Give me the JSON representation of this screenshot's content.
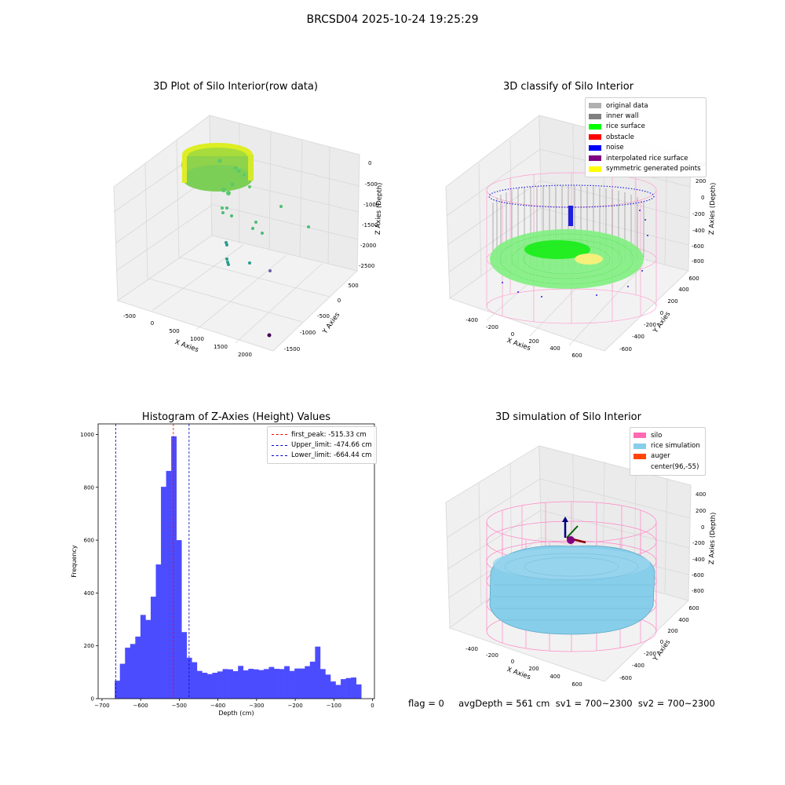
{
  "suptitle": "BRCSD04 2025-10-24 19:25:29",
  "footer": "flag = 0     avgDepth = 561 cm  sv1 = 700~2300  sv2 = 700~2300",
  "colors": {
    "hist": "#4c4cff",
    "peak": "#ff0000",
    "limit": "#0000cc",
    "silo": "#ff69b4",
    "rice": "#87ceeb",
    "auger": "#ff4500"
  },
  "raw_plot": {
    "title": "3D Plot of Silo Interior(row data)",
    "xlabel": "X Axies",
    "ylabel": "Y Axies",
    "zlabel": "Z Axies (Depth)",
    "x_ticks": [
      "-500",
      "0",
      "500",
      "1000",
      "1500",
      "2000"
    ],
    "y_ticks": [
      "500",
      "0",
      "-500",
      "-1000",
      "-1500"
    ],
    "z_ticks": [
      "0",
      "-500",
      "-1000",
      "-1500",
      "-2000",
      "-2500"
    ]
  },
  "classify_plot": {
    "title": "3D classify of Silo Interior",
    "xlabel": "X Axies",
    "ylabel": "Y Axies",
    "zlabel": "Z Axies (Depth)",
    "x_ticks": [
      "-400",
      "-200",
      "0",
      "200",
      "400",
      "600"
    ],
    "y_ticks": [
      "600",
      "400",
      "200",
      "0",
      "-200",
      "-400",
      "-600"
    ],
    "z_ticks": [
      "400",
      "200",
      "0",
      "-200",
      "-400",
      "-600",
      "-800"
    ],
    "legend": [
      {
        "label": "original data",
        "color": "#b0b0b0"
      },
      {
        "label": "inner wall",
        "color": "#808080"
      },
      {
        "label": "rice surface",
        "color": "#00ff00"
      },
      {
        "label": "obstacle",
        "color": "#ff0000"
      },
      {
        "label": "noise",
        "color": "#0000ff"
      },
      {
        "label": "interpolated rice surface",
        "color": "#800080"
      },
      {
        "label": "symmetric generated points",
        "color": "#ffff00"
      }
    ]
  },
  "histogram": {
    "title": "Histogram of Z-Axies (Height) Values",
    "xlabel": "Depth (cm)",
    "ylabel": "Frequency",
    "legend": [
      {
        "label": "first_peak: -515.33 cm"
      },
      {
        "label": "Upper_limit: -474.66 cm"
      },
      {
        "label": "Lower_limit: -664.44 cm"
      }
    ]
  },
  "sim_plot": {
    "title": "3D simulation of Silo Interior",
    "xlabel": "X Axies",
    "ylabel": "Y Axies",
    "zlabel": "Z Axies (Depth)",
    "x_ticks": [
      "-400",
      "-200",
      "0",
      "200",
      "400",
      "600"
    ],
    "y_ticks": [
      "600",
      "400",
      "200",
      "0",
      "-200",
      "-400",
      "-600"
    ],
    "z_ticks": [
      "400",
      "200",
      "0",
      "-200",
      "-400",
      "-600",
      "-800"
    ],
    "legend": [
      {
        "label": "silo",
        "color": "#ff69b4"
      },
      {
        "label": "rice simulation",
        "color": "#87ceeb"
      },
      {
        "label": "auger",
        "color": "#ff4500"
      },
      {
        "label": "center(96,-55)",
        "color": ""
      }
    ]
  },
  "chart_data": {
    "type": "bar",
    "title": "Histogram of Z-Axies (Height) Values",
    "xlabel": "Depth (cm)",
    "ylabel": "Frequency",
    "xlim": [
      -710,
      5
    ],
    "ylim": [
      0,
      1040
    ],
    "x_ticks": [
      -700,
      -600,
      -500,
      -400,
      -300,
      -200,
      -100,
      0
    ],
    "y_ticks": [
      0,
      200,
      400,
      600,
      800,
      1000
    ],
    "bin_width": 13.29,
    "bin_edges_start": -667,
    "values": [
      68,
      132,
      193,
      207,
      235,
      317,
      298,
      386,
      508,
      802,
      862,
      993,
      600,
      252,
      155,
      138,
      105,
      98,
      93,
      98,
      103,
      112,
      111,
      104,
      124,
      107,
      113,
      111,
      108,
      112,
      120,
      113,
      112,
      123,
      105,
      114,
      114,
      123,
      140,
      197,
      112,
      91,
      65,
      52,
      74,
      78,
      80,
      54
    ],
    "vlines": [
      {
        "name": "first_peak: -515.33 cm",
        "x": -515.33,
        "color": "#ff0000"
      },
      {
        "name": "Upper_limit: -474.66 cm",
        "x": -474.66,
        "color": "#0000cc"
      },
      {
        "name": "Lower_limit: -664.44 cm",
        "x": -664.44,
        "color": "#0000cc"
      }
    ]
  }
}
